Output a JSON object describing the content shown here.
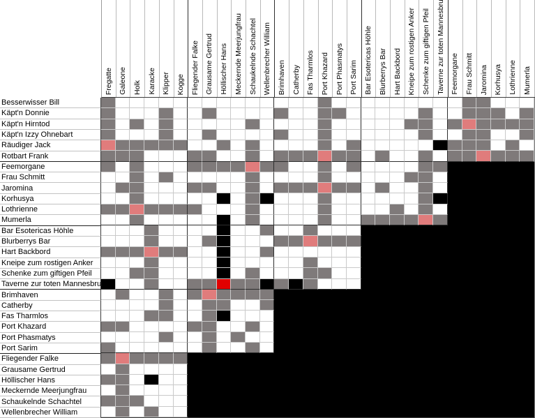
{
  "puzzle_grid": {
    "col_labels": [
      "Fregatte",
      "Galeone",
      "Holk",
      "Karacke",
      "Klipper",
      "Kogge",
      "Fliegender Falke",
      "Grausame Gertrud",
      "Höllischer Hans",
      "Meckernde Meerjungfrau",
      "Schaukelnde Schachtel",
      "Wellenbrecher William",
      "Brimhaven",
      "Catherby",
      "Fas Tharmlos",
      "Port Khazard",
      "Port Phasmatys",
      "Port Sarim",
      "Bar Esotericas Höhle",
      "Blurberrys Bar",
      "Hart Backbord",
      "Kneipe zum rostigen Anker",
      "Schenke zum giftigen Pfeil",
      "Taverne zur toten Mannesbrust",
      "Feemorgane",
      "Frau Schmitt",
      "Jaromina",
      "Korhusya",
      "Lothrienne",
      "Mumerla"
    ],
    "row_labels": [
      "Besserwisser Bill",
      "Käpt'n Donnie",
      "Käpt'n Hirntod",
      "Käpt'n Izzy Ohnebart",
      "Räudiger Jack",
      "Rotbart Frank",
      "Feemorgane",
      "Frau Schmitt",
      "Jaromina",
      "Korhusya",
      "Lothrienne",
      "Mumerla",
      "Bar Esotericas Höhle",
      "Blurberrys Bar",
      "Hart Backbord",
      "Kneipe zum rostigen Anker",
      "Schenke zum giftigen Pfeil",
      "Taverne zur toten Mannesbrust",
      "Brimhaven",
      "Catherby",
      "Fas Tharmlos",
      "Port Khazard",
      "Port Phasmatys",
      "Port Sarim",
      "Fliegender Falke",
      "Grausame Gertrud",
      "Höllischer Hans",
      "Meckernde Meerjungfrau",
      "Schaukelnde Schachtel",
      "Wellenbrecher William"
    ],
    "cell_state_legend": {
      ".": "empty",
      "g": "gray-mark",
      "b": "black-mark",
      "p": "pink-mark",
      "r": "red-mark",
      "x": "blocked-region"
    },
    "colors": {
      "empty": "#ffffff",
      "gray": "#7f7a7a",
      "black": "#000000",
      "pink": "#e07c7c",
      "red": "#e10000",
      "blocked": "#000000"
    },
    "group_size": 6,
    "cells": [
      "g..............g.........gg...",
      "g...g..g....g..gg.....g..ggg.g",
      "g.g.g.....g....g.....gg.gpgggg",
      "g...g..g....g..g......g..gg..g",
      "pggggg..g.g....g.g.....bggg.g.",
      "ggg...gg..g.gggpgg.g..g.ggpggg",
      "g.g...ggggpgg..g.g....ggxxxxxx",
      "..g.g.....g....g.....gg.xxxxxx",
      ".gg...gg..g.gggpgg.g..g.xxxxxx",
      "..g.....b.gb...g......gbxxxxxx",
      "ggpgggg...g....g....g.g.xxxxxx",
      "..g.....b.g....g..ggggpgxxxxxx",
      "...g....b..g..g...xxxxxxxxxxxx",
      "...g...gb...ggpgggxxxxxxxxxxxx",
      "gggpgg..b..g......xxxxxxxxxxxx",
      "...g....b.....g...xxxxxxxxxxxx",
      "..gg....b.g...gg..xxxxxxxxxxxx",
      "b..g..ggrggbgbg...xxxxxxxxxxxx",
      ".g..g.gpggggxxxxxxxxxxxxxxxxxx",
      "....g..gg..gxxxxxxxxxxxxxxxxxx",
      "...gg..gb...xxxxxxxxxxxxxxxxxx",
      "gg....gg..g.xxxxxxxxxxxxxxxxxx",
      "....g..g.g..xxxxxxxxxxxxxxxxxx",
      "g......g..g.xxxxxxxxxxxxxxxxxx",
      "gpggggxxxxxxxxxxxxxxxxxxxxxxxx",
      ".g....xxxxxxxxxxxxxxxxxxxxxxxx",
      "gg.b..xxxxxxxxxxxxxxxxxxxxxxxx",
      ".g....xxxxxxxxxxxxxxxxxxxxxxxx",
      "ggg...xxxxxxxxxxxxxxxxxxxxxxxx",
      ".g.g..xxxxxxxxxxxxxxxxxxxxxxxx"
    ]
  }
}
